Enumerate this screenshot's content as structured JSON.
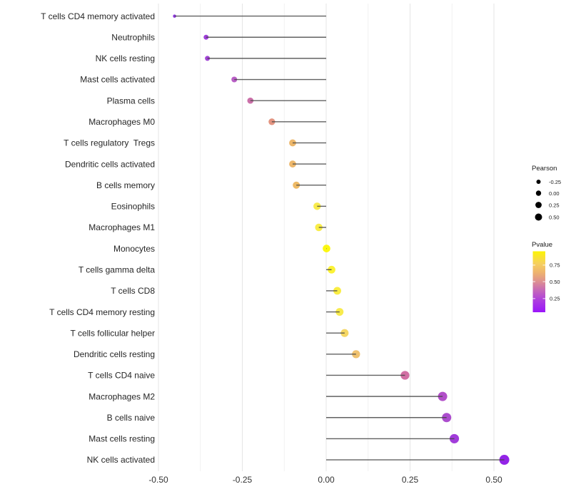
{
  "chart_data": {
    "type": "scatter",
    "subtype": "lollipop-horizontal",
    "title": "",
    "xlabel": "",
    "ylabel": "",
    "xlim": [
      -0.55,
      0.59
    ],
    "grid": "vertical-only",
    "x_ticks": [
      {
        "label": "-0.50",
        "value": -0.5
      },
      {
        "label": "-0.25",
        "value": -0.25
      },
      {
        "label": "0.00",
        "value": 0.0
      },
      {
        "label": "0.25",
        "value": 0.25
      },
      {
        "label": "0.50",
        "value": 0.5
      }
    ],
    "x_minor_ticks": [
      -0.375,
      -0.125,
      0.125,
      0.375
    ],
    "categories": [
      "T cells CD4 memory activated",
      "Neutrophils",
      "NK cells resting",
      "Mast cells activated",
      "Plasma cells",
      "Macrophages M0",
      "T cells regulatory  Tregs",
      "Dendritic cells activated",
      "B cells memory",
      "Eosinophils",
      "Macrophages M1",
      "Monocytes",
      "T cells gamma delta",
      "T cells CD8",
      "T cells CD4 memory resting",
      "T cells follicular helper",
      "Dendritic cells resting",
      "T cells CD4 naive",
      "Macrophages M2",
      "B cells naive",
      "Mast cells resting",
      "NK cells activated"
    ],
    "points": [
      {
        "label": "T cells CD4 memory activated",
        "pearson": -0.452,
        "dot_color": "#8a2be0"
      },
      {
        "label": "Neutrophils",
        "pearson": -0.358,
        "dot_color": "#9a35d8"
      },
      {
        "label": "NK cells resting",
        "pearson": -0.354,
        "dot_color": "#9d3ad4"
      },
      {
        "label": "Mast cells activated",
        "pearson": -0.274,
        "dot_color": "#b556c3"
      },
      {
        "label": "Plasma cells",
        "pearson": -0.226,
        "dot_color": "#c868a4"
      },
      {
        "label": "Macrophages M0",
        "pearson": -0.162,
        "dot_color": "#e18e79"
      },
      {
        "label": "T cells regulatory  Tregs",
        "pearson": -0.1,
        "dot_color": "#ecb363"
      },
      {
        "label": "Dendritic cells activated",
        "pearson": -0.1,
        "dot_color": "#ecb363"
      },
      {
        "label": "B cells memory",
        "pearson": -0.089,
        "dot_color": "#edb65e"
      },
      {
        "label": "Eosinophils",
        "pearson": -0.027,
        "dot_color": "#f8ea43"
      },
      {
        "label": "Macrophages M1",
        "pearson": -0.022,
        "dot_color": "#f9ec3e"
      },
      {
        "label": "Monocytes",
        "pearson": 0.001,
        "dot_color": "#fbf705"
      },
      {
        "label": "T cells gamma delta",
        "pearson": 0.016,
        "dot_color": "#fbf12b"
      },
      {
        "label": "T cells CD8",
        "pearson": 0.033,
        "dot_color": "#f9ec38"
      },
      {
        "label": "T cells CD4 memory resting",
        "pearson": 0.04,
        "dot_color": "#f8ea43"
      },
      {
        "label": "T cells follicular helper",
        "pearson": 0.055,
        "dot_color": "#f4d55c"
      },
      {
        "label": "Dendritic cells resting",
        "pearson": 0.089,
        "dot_color": "#efbf67"
      },
      {
        "label": "T cells CD4 naive",
        "pearson": 0.235,
        "dot_color": "#d0689f"
      },
      {
        "label": "Macrophages M2",
        "pearson": 0.347,
        "dot_color": "#ae46c6"
      },
      {
        "label": "B cells naive",
        "pearson": 0.359,
        "dot_color": "#a843cb"
      },
      {
        "label": "Mast cells resting",
        "pearson": 0.382,
        "dot_color": "#9c32d8"
      },
      {
        "label": "NK cells activated",
        "pearson": 0.531,
        "dot_color": "#8d18e6"
      }
    ],
    "legend_pearson": {
      "title": "Pearson",
      "dot_color": "#000000",
      "entries": [
        {
          "label": "-0.25",
          "value": -0.25
        },
        {
          "label": "0.00",
          "value": 0.0
        },
        {
          "label": "0.25",
          "value": 0.25
        },
        {
          "label": "0.50",
          "value": 0.5
        }
      ]
    },
    "legend_pvalue": {
      "title": "Pvalue",
      "tick_labels": [
        "0.75",
        "0.50",
        "0.25"
      ],
      "gradient_bottom_to_top": [
        {
          "offset": 0.0,
          "color": "#9a15fa"
        },
        {
          "offset": 0.2,
          "color": "#ae3fdd"
        },
        {
          "offset": 0.35,
          "color": "#c465bb"
        },
        {
          "offset": 0.5,
          "color": "#dd8f92"
        },
        {
          "offset": 0.65,
          "color": "#eeb36e"
        },
        {
          "offset": 0.8,
          "color": "#f6d05e"
        },
        {
          "offset": 1.0,
          "color": "#fcf403"
        }
      ]
    },
    "colors": {
      "background": "#ffffff",
      "stem": "#454545",
      "gridline_major": "#e6e6e6",
      "gridline_minor": "#f0f0f0",
      "axis_text": "#333333"
    }
  }
}
